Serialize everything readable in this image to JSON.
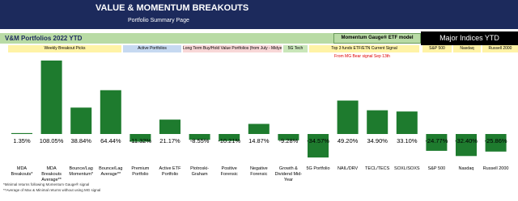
{
  "header": {
    "title": "VALUE & MOMENTUM BREAKOUTS",
    "subtitle": "Portfolio Summary Page"
  },
  "band": {
    "left": "V&M Portfolios 2022 YTD",
    "model": "Momentum Gauge® ETF model",
    "indices": "Major Indices YTD"
  },
  "sections": [
    "Weekly Breakout Picks",
    "Active Portfolios",
    "Long Term Buy/Hold Value Portfolios (from July - Midyear)",
    "5G Tech",
    "Top 3 funds ETF/ETN Current Signal",
    "S&P 500",
    "Nasdaq",
    "Russell 2000"
  ],
  "note": "From MG Bear signal Sep 13th",
  "footnotes": [
    "*Minimal returns following Momentum Gauge® signal",
    "**Average of Max & Minimal returns without using MG signal"
  ],
  "chart_data": {
    "type": "bar",
    "color": "#1e7b2e",
    "categories": [
      "MDA Breakouts*",
      "MDA Breakouts Average**",
      "Bounce/Lag Momentum*",
      "Bounce/Lag Average**",
      "Premium Portfolio",
      "Active ETF Portfolio",
      "Piotroski-Graham",
      "Positive Forensic",
      "Negative Forensic",
      "Growth & Dividend Mid-Year",
      "5G Portfolio",
      "NAIL/DRV",
      "TECL/TECS",
      "SOXL/SOXS",
      "S&P 500",
      "Nasdaq",
      "Russell 2000"
    ],
    "values": [
      1.35,
      108.05,
      38.84,
      64.44,
      -11.32,
      21.17,
      -8.55,
      -10.21,
      14.87,
      -9.28,
      -34.57,
      49.2,
      34.9,
      33.1,
      -24.77,
      -32.4,
      -25.86
    ],
    "value_labels": [
      "1.35%",
      "108.05%",
      "38.84%",
      "64.44%",
      "-11.32%",
      "21.17%",
      "-8.55%",
      "-10.21%",
      "14.87%",
      "-9.28%",
      "-34.57%",
      "49.20%",
      "34.90%",
      "33.10%",
      "-24.77%",
      "-32.40%",
      "-25.86%"
    ]
  }
}
